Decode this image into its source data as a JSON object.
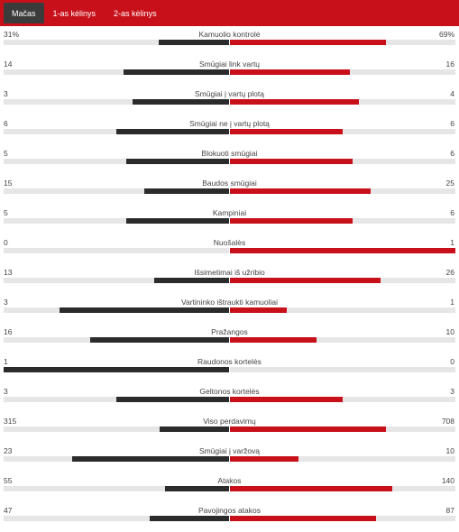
{
  "tabs": [
    {
      "label": "Mačas",
      "active": true
    },
    {
      "label": "1-as kėlinys",
      "active": false
    },
    {
      "label": "2-as kėlinys",
      "active": false
    }
  ],
  "colors": {
    "header": "#c8101a",
    "active_tab": "#3b3b3b",
    "home_bar": "#2b2b2b",
    "away_bar": "#c8101a",
    "track": "#e6e6e6"
  },
  "stats": [
    {
      "label": "Kamuolio kontrolė",
      "home": "31%",
      "away": "69%",
      "home_share": 0.31,
      "away_share": 0.69
    },
    {
      "label": "Smūgiai link vartų",
      "home": "14",
      "away": "16",
      "home_share": 0.467,
      "away_share": 0.533
    },
    {
      "label": "Smūgiai į vartų plotą",
      "home": "3",
      "away": "4",
      "home_share": 0.429,
      "away_share": 0.571
    },
    {
      "label": "Smūgiai ne į vartų plotą",
      "home": "6",
      "away": "6",
      "home_share": 0.5,
      "away_share": 0.5
    },
    {
      "label": "Blokuoti smūgiai",
      "home": "5",
      "away": "6",
      "home_share": 0.455,
      "away_share": 0.545
    },
    {
      "label": "Baudos smūgiai",
      "home": "15",
      "away": "25",
      "home_share": 0.375,
      "away_share": 0.625
    },
    {
      "label": "Kampiniai",
      "home": "5",
      "away": "6",
      "home_share": 0.455,
      "away_share": 0.545
    },
    {
      "label": "Nuošalės",
      "home": "0",
      "away": "1",
      "home_share": 0.0,
      "away_share": 1.0
    },
    {
      "label": "Išsimetimai iš užribio",
      "home": "13",
      "away": "26",
      "home_share": 0.333,
      "away_share": 0.667
    },
    {
      "label": "Vartininko ištraukti kamuoliai",
      "home": "3",
      "away": "1",
      "home_share": 0.75,
      "away_share": 0.25
    },
    {
      "label": "Pražangos",
      "home": "16",
      "away": "10",
      "home_share": 0.615,
      "away_share": 0.385
    },
    {
      "label": "Raudonos kortelės",
      "home": "1",
      "away": "0",
      "home_share": 1.0,
      "away_share": 0.0
    },
    {
      "label": "Geltonos kortelės",
      "home": "3",
      "away": "3",
      "home_share": 0.5,
      "away_share": 0.5
    },
    {
      "label": "Viso perdavimų",
      "home": "315",
      "away": "708",
      "home_share": 0.308,
      "away_share": 0.692
    },
    {
      "label": "Smūgiai į varžovą",
      "home": "23",
      "away": "10",
      "home_share": 0.697,
      "away_share": 0.303
    },
    {
      "label": "Atakos",
      "home": "55",
      "away": "140",
      "home_share": 0.282,
      "away_share": 0.718
    },
    {
      "label": "Pavojingos atakos",
      "home": "47",
      "away": "87",
      "home_share": 0.351,
      "away_share": 0.649
    }
  ]
}
